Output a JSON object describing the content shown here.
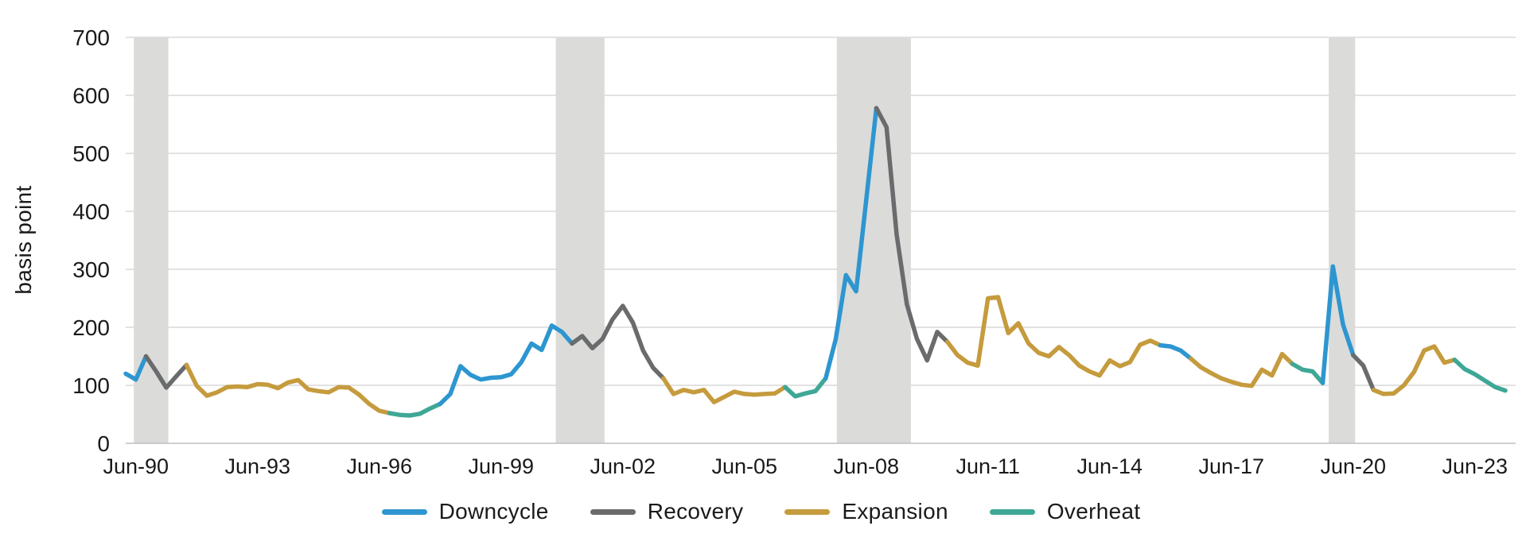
{
  "chart_data": {
    "type": "line",
    "title": "",
    "ylabel": "basis point",
    "ylim": [
      0,
      700
    ],
    "y_ticks": [
      0,
      100,
      200,
      300,
      400,
      500,
      600,
      700
    ],
    "x_tick_labels": [
      "Jun-90",
      "Jun-93",
      "Jun-96",
      "Jun-99",
      "Jun-02",
      "Jun-05",
      "Jun-08",
      "Jun-11",
      "Jun-14",
      "Jun-17",
      "Jun-20",
      "Jun-23"
    ],
    "x_tick_indices": [
      1,
      13,
      25,
      37,
      49,
      61,
      73,
      85,
      97,
      109,
      121,
      133
    ],
    "x_unit": "quarter",
    "grid": "horizontal",
    "legend_position": "bottom",
    "legend": [
      {
        "key": "D",
        "label": "Downcycle",
        "color": "#2D96D0"
      },
      {
        "key": "R",
        "label": "Recovery",
        "color": "#6A6B6D"
      },
      {
        "key": "E",
        "label": "Expansion",
        "color": "#C59B3D"
      },
      {
        "key": "O",
        "label": "Overheat",
        "color": "#3FA796"
      }
    ],
    "values": [
      120,
      110,
      150,
      124,
      96,
      116,
      135,
      99,
      82,
      88,
      97,
      98,
      97,
      102,
      101,
      95,
      105,
      109,
      93,
      90,
      88,
      97,
      96,
      84,
      68,
      56,
      52,
      49,
      48,
      51,
      60,
      68,
      85,
      133,
      118,
      110,
      113,
      114,
      119,
      140,
      172,
      161,
      203,
      192,
      172,
      185,
      164,
      180,
      214,
      237,
      208,
      160,
      130,
      112,
      85,
      92,
      88,
      92,
      71,
      80,
      89,
      85,
      84,
      85,
      86,
      97,
      81,
      86,
      90,
      112,
      180,
      290,
      262,
      420,
      578,
      545,
      360,
      240,
      180,
      143,
      192,
      175,
      152,
      139,
      134,
      250,
      252,
      190,
      207,
      172,
      156,
      150,
      166,
      152,
      134,
      124,
      117,
      143,
      133,
      140,
      170,
      177,
      169,
      167,
      160,
      146,
      131,
      121,
      112,
      106,
      101,
      99,
      127,
      117,
      154,
      137,
      127,
      124,
      104,
      305,
      205,
      152,
      134,
      92,
      85,
      86,
      100,
      123,
      160,
      167,
      139,
      144,
      128,
      119,
      108,
      97,
      91
    ],
    "phases": "DDRRRREEEEEEEEEEEEEEEEEEEEOOOOODDDDDDDDDDDDDRRRRRRRRREEEEEEEEEEEEOOOODDDDDRRRRRRREEEEEEEEEEEEEEEEEEEEEDDDEEEEEEEEEEOOODDDRREEEEEEEEOOOOOO",
    "recession_bands": [
      {
        "from": 0.8,
        "to": 4.2
      },
      {
        "from": 42.4,
        "to": 47.2
      },
      {
        "from": 70.1,
        "to": 77.4
      },
      {
        "from": 118.6,
        "to": 121.2
      }
    ],
    "colors": {
      "band": "#DBDBD9",
      "gridline": "#D9D9D9",
      "axis_line": "#BFBFBF",
      "tick_text": "#1a1a1a"
    }
  }
}
